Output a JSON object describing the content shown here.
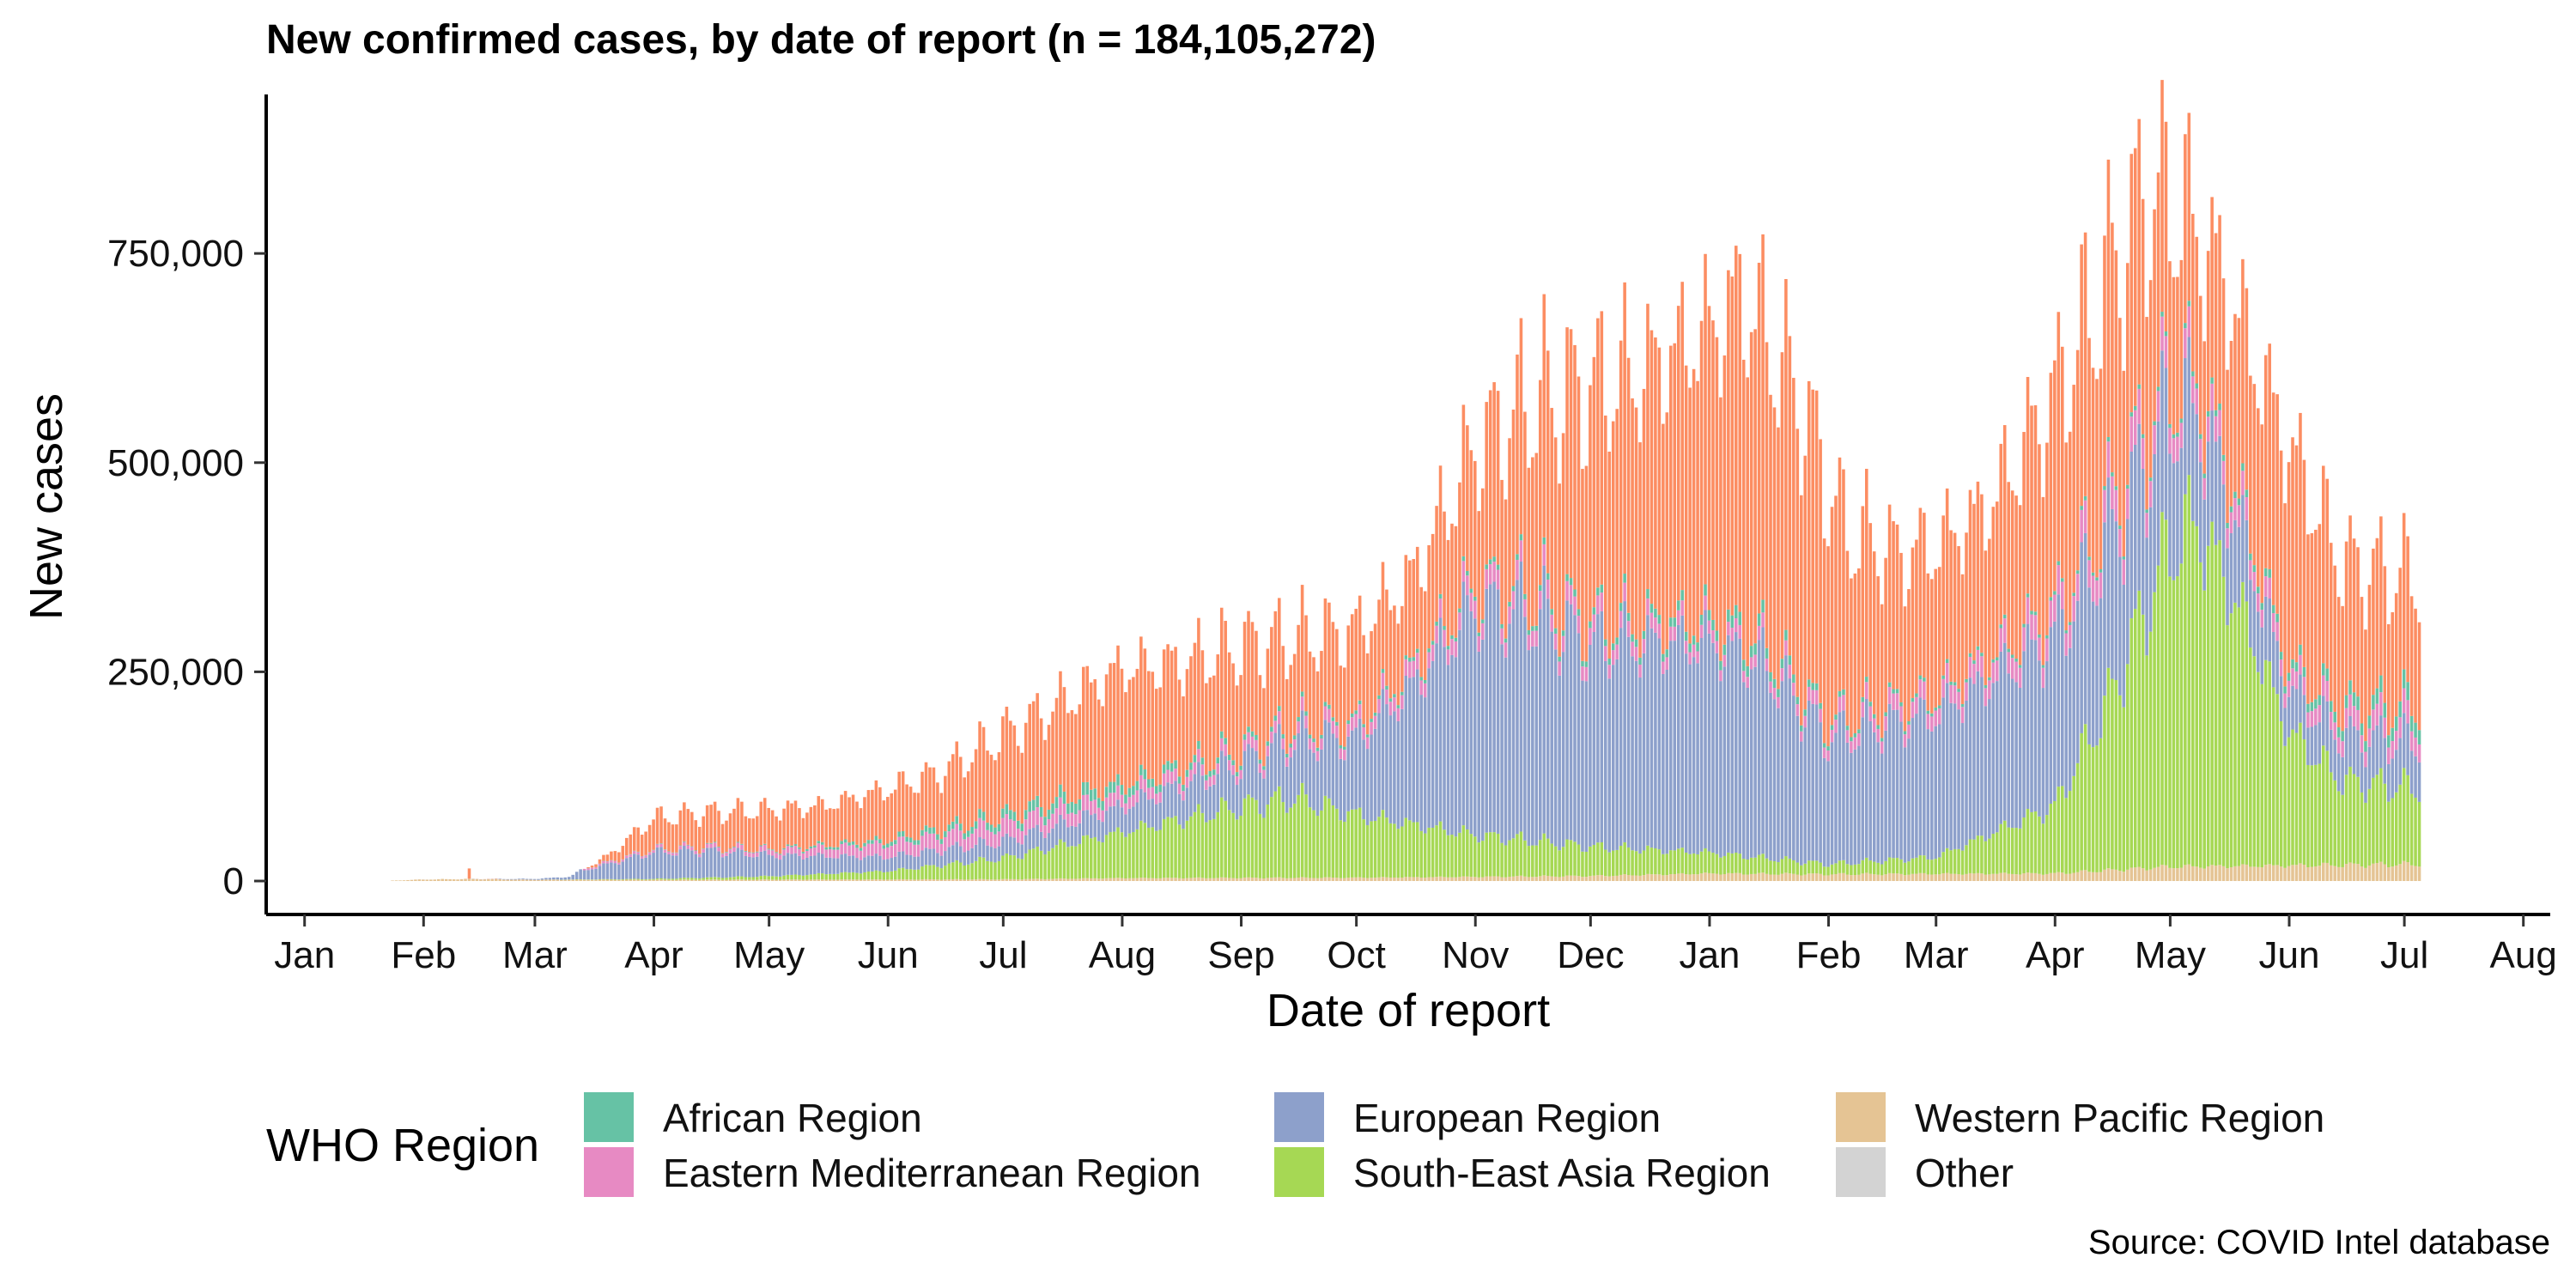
{
  "chart_data": {
    "type": "bar",
    "stacked": true,
    "title": "New confirmed cases, by date of report (n = 184,105,272)",
    "xlabel": "Date of report",
    "ylabel": "New cases",
    "caption": "Source: COVID Intel database",
    "y_ticks": [
      0,
      250000,
      500000,
      750000
    ],
    "y_tick_labels": [
      "0",
      "250,000",
      "500,000",
      "750,000"
    ],
    "ylim": [
      -40000,
      940000
    ],
    "xlim": [
      "2019-12-22",
      "2021-08-08"
    ],
    "x_ticks": [
      "2020-01-01",
      "2020-02-01",
      "2020-03-01",
      "2020-04-01",
      "2020-05-01",
      "2020-06-01",
      "2020-07-01",
      "2020-08-01",
      "2020-09-01",
      "2020-10-01",
      "2020-11-01",
      "2020-12-01",
      "2021-01-01",
      "2021-02-01",
      "2021-03-01",
      "2021-04-01",
      "2021-05-01",
      "2021-06-01",
      "2021-07-01",
      "2021-08-01"
    ],
    "x_tick_labels": [
      "Jan",
      "Feb",
      "Mar",
      "Apr",
      "May",
      "Jun",
      "Jul",
      "Aug",
      "Sep",
      "Oct",
      "Nov",
      "Dec",
      "Jan",
      "Feb",
      "Mar",
      "Apr",
      "May",
      "Jun",
      "Jul",
      "Aug"
    ],
    "date_range": [
      "2020-01-24",
      "2021-07-05"
    ],
    "legend": {
      "title": "WHO Region",
      "placement": "bottom",
      "columns": 3
    },
    "series": [
      {
        "name": "Western Pacific Region",
        "color": "#E5C494",
        "anchors": [
          [
            "2020-01-24",
            1000
          ],
          [
            "2020-02-10",
            2500
          ],
          [
            "2020-03-01",
            1500
          ],
          [
            "2020-04-01",
            1500
          ],
          [
            "2020-07-01",
            2000
          ],
          [
            "2020-08-01",
            3500
          ],
          [
            "2020-10-01",
            4000
          ],
          [
            "2020-12-01",
            6000
          ],
          [
            "2021-01-01",
            9000
          ],
          [
            "2021-02-01",
            8000
          ],
          [
            "2021-04-01",
            9000
          ],
          [
            "2021-05-01",
            17000
          ],
          [
            "2021-07-05",
            20000
          ]
        ]
      },
      {
        "name": "South-East Asia Region",
        "color": "#A6D854",
        "anchors": [
          [
            "2020-01-24",
            0
          ],
          [
            "2020-03-01",
            0
          ],
          [
            "2020-04-01",
            1000
          ],
          [
            "2020-05-01",
            4000
          ],
          [
            "2020-06-01",
            10000
          ],
          [
            "2020-07-01",
            25000
          ],
          [
            "2020-08-01",
            55000
          ],
          [
            "2020-09-01",
            85000
          ],
          [
            "2020-09-15",
            95000
          ],
          [
            "2020-10-01",
            75000
          ],
          [
            "2020-11-01",
            50000
          ],
          [
            "2020-12-01",
            35000
          ],
          [
            "2021-01-01",
            25000
          ],
          [
            "2021-02-01",
            12000
          ],
          [
            "2021-03-01",
            20000
          ],
          [
            "2021-04-01",
            80000
          ],
          [
            "2021-04-15",
            200000
          ],
          [
            "2021-05-01",
            380000
          ],
          [
            "2021-05-08",
            410000
          ],
          [
            "2021-05-20",
            300000
          ],
          [
            "2021-06-01",
            160000
          ],
          [
            "2021-06-15",
            100000
          ],
          [
            "2021-07-05",
            90000
          ]
        ]
      },
      {
        "name": "European Region",
        "color": "#8DA0CB",
        "anchors": [
          [
            "2020-01-24",
            0
          ],
          [
            "2020-02-20",
            200
          ],
          [
            "2020-03-01",
            3000
          ],
          [
            "2020-03-15",
            12000
          ],
          [
            "2020-04-01",
            32000
          ],
          [
            "2020-04-15",
            32000
          ],
          [
            "2020-05-01",
            25000
          ],
          [
            "2020-06-01",
            17000
          ],
          [
            "2020-07-01",
            20000
          ],
          [
            "2020-08-01",
            30000
          ],
          [
            "2020-09-01",
            50000
          ],
          [
            "2020-10-01",
            90000
          ],
          [
            "2020-10-15",
            160000
          ],
          [
            "2020-11-01",
            270000
          ],
          [
            "2020-11-15",
            270000
          ],
          [
            "2020-12-01",
            240000
          ],
          [
            "2021-01-01",
            250000
          ],
          [
            "2021-01-15",
            230000
          ],
          [
            "2021-02-01",
            150000
          ],
          [
            "2021-03-01",
            170000
          ],
          [
            "2021-04-01",
            200000
          ],
          [
            "2021-04-15",
            190000
          ],
          [
            "2021-05-01",
            160000
          ],
          [
            "2021-06-01",
            50000
          ],
          [
            "2021-07-05",
            55000
          ]
        ]
      },
      {
        "name": "Eastern Mediterranean Region",
        "color": "#E78AC3",
        "anchors": [
          [
            "2020-01-24",
            0
          ],
          [
            "2020-02-20",
            0
          ],
          [
            "2020-03-01",
            1000
          ],
          [
            "2020-04-01",
            3000
          ],
          [
            "2020-05-01",
            6000
          ],
          [
            "2020-06-01",
            15000
          ],
          [
            "2020-07-01",
            20000
          ],
          [
            "2020-08-01",
            15000
          ],
          [
            "2020-09-01",
            12000
          ],
          [
            "2020-10-01",
            15000
          ],
          [
            "2020-11-01",
            22000
          ],
          [
            "2020-12-01",
            20000
          ],
          [
            "2021-01-01",
            15000
          ],
          [
            "2021-02-01",
            15000
          ],
          [
            "2021-03-01",
            20000
          ],
          [
            "2021-04-01",
            30000
          ],
          [
            "2021-04-20",
            38000
          ],
          [
            "2021-05-15",
            28000
          ],
          [
            "2021-06-01",
            20000
          ],
          [
            "2021-07-05",
            25000
          ]
        ]
      },
      {
        "name": "African Region",
        "color": "#66C2A5",
        "anchors": [
          [
            "2020-01-24",
            0
          ],
          [
            "2020-03-01",
            0
          ],
          [
            "2020-04-01",
            500
          ],
          [
            "2020-05-01",
            1000
          ],
          [
            "2020-06-01",
            5000
          ],
          [
            "2020-07-01",
            10000
          ],
          [
            "2020-07-20",
            14000
          ],
          [
            "2020-08-01",
            12000
          ],
          [
            "2020-09-01",
            6000
          ],
          [
            "2020-10-01",
            4000
          ],
          [
            "2020-11-01",
            5000
          ],
          [
            "2020-12-01",
            8000
          ],
          [
            "2021-01-01",
            12000
          ],
          [
            "2021-01-10",
            15000
          ],
          [
            "2021-02-01",
            6000
          ],
          [
            "2021-03-01",
            4000
          ],
          [
            "2021-04-01",
            4000
          ],
          [
            "2021-05-01",
            5000
          ],
          [
            "2021-06-01",
            10000
          ],
          [
            "2021-07-05",
            20000
          ]
        ]
      },
      {
        "name": "Other",
        "color": "#D3D3D3",
        "anchors": [
          [
            "2020-01-24",
            0
          ],
          [
            "2021-07-05",
            0
          ]
        ]
      }
    ],
    "total_anchors": [
      [
        "2020-01-24",
        500
      ],
      [
        "2020-02-01",
        1800
      ],
      [
        "2020-02-15",
        2500
      ],
      [
        "2020-03-01",
        2500
      ],
      [
        "2020-03-10",
        5000
      ],
      [
        "2020-03-20",
        30000
      ],
      [
        "2020-04-01",
        75000
      ],
      [
        "2020-04-15",
        82000
      ],
      [
        "2020-05-01",
        85000
      ],
      [
        "2020-05-15",
        90000
      ],
      [
        "2020-06-01",
        110000
      ],
      [
        "2020-06-15",
        130000
      ],
      [
        "2020-07-01",
        175000
      ],
      [
        "2020-07-15",
        210000
      ],
      [
        "2020-08-01",
        255000
      ],
      [
        "2020-08-15",
        260000
      ],
      [
        "2020-09-01",
        280000
      ],
      [
        "2020-09-15",
        290000
      ],
      [
        "2020-10-01",
        300000
      ],
      [
        "2020-10-15",
        360000
      ],
      [
        "2020-10-25",
        450000
      ],
      [
        "2020-11-01",
        520000
      ],
      [
        "2020-11-15",
        570000
      ],
      [
        "2020-12-01",
        590000
      ],
      [
        "2020-12-15",
        610000
      ],
      [
        "2021-01-01",
        660000
      ],
      [
        "2021-01-10",
        700000
      ],
      [
        "2021-01-25",
        570000
      ],
      [
        "2021-02-05",
        420000
      ],
      [
        "2021-02-20",
        390000
      ],
      [
        "2021-03-01",
        400000
      ],
      [
        "2021-03-15",
        450000
      ],
      [
        "2021-04-01",
        580000
      ],
      [
        "2021-04-15",
        720000
      ],
      [
        "2021-04-25",
        820000
      ],
      [
        "2021-05-05",
        800000
      ],
      [
        "2021-05-15",
        720000
      ],
      [
        "2021-06-01",
        520000
      ],
      [
        "2021-06-15",
        380000
      ],
      [
        "2021-07-05",
        360000
      ]
    ],
    "annotation_spike": {
      "date": "2020-02-13",
      "value": 15000
    }
  }
}
